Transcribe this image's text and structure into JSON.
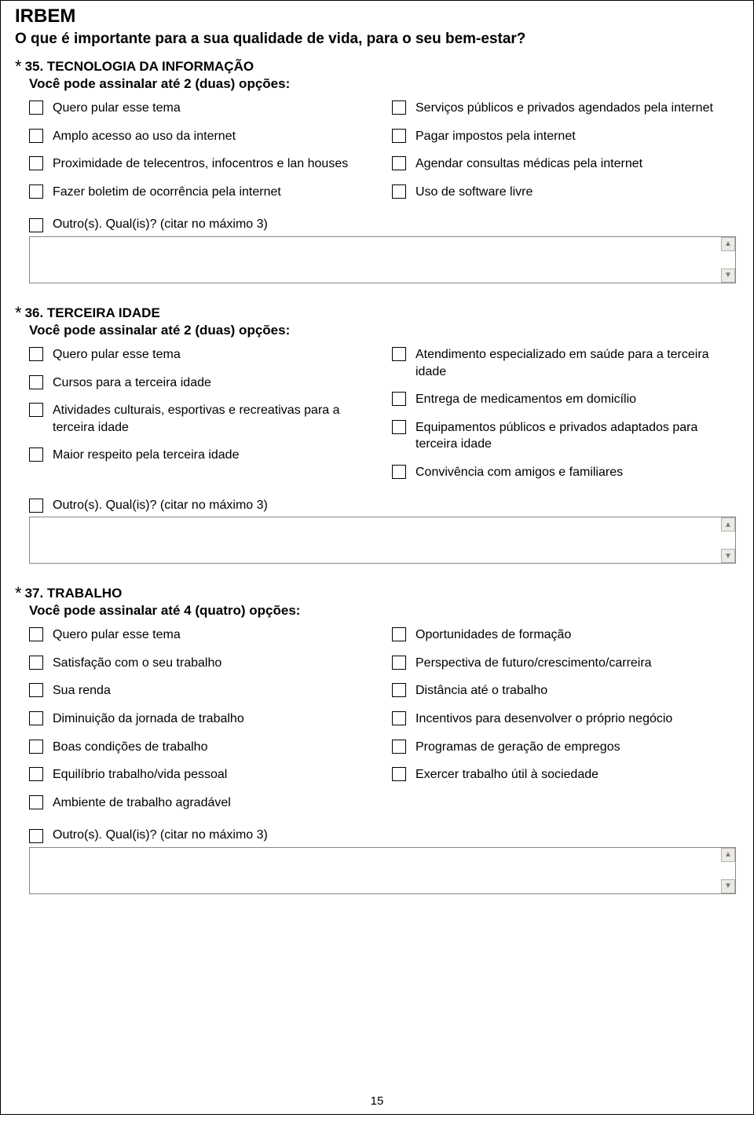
{
  "page": {
    "title": "IRBEM",
    "subtitle": "O que é importante para a sua qualidade de vida, para o seu bem-estar?",
    "page_number": "15"
  },
  "asterisk": "*",
  "scroll_up_glyph": "▲",
  "scroll_down_glyph": "▼",
  "q35": {
    "number_title": "35. TECNOLOGIA DA INFORMAÇÃO",
    "instruction": "Você pode assinalar até 2 (duas) opções:",
    "left": [
      "Quero pular esse tema",
      "Amplo acesso ao uso da internet",
      "Proximidade de telecentros, infocentros e lan houses",
      "Fazer boletim de ocorrência pela internet"
    ],
    "right": [
      "Serviços públicos e privados agendados pela internet",
      "Pagar impostos pela internet",
      "Agendar consultas médicas pela internet",
      "Uso de software livre"
    ],
    "other_label": "Outro(s). Qual(is)? (citar no máximo 3)"
  },
  "q36": {
    "number_title": "36. TERCEIRA IDADE",
    "instruction": "Você pode assinalar até 2 (duas) opções:",
    "left": [
      "Quero pular esse tema",
      "Cursos para a terceira idade",
      "Atividades culturais, esportivas e recreativas para a terceira idade",
      "Maior respeito pela terceira idade"
    ],
    "right": [
      "Atendimento especializado em saúde para a terceira idade",
      "Entrega de medicamentos em domicílio",
      "Equipamentos públicos e privados adaptados para terceira idade",
      "Convivência com amigos e familiares"
    ],
    "other_label": "Outro(s). Qual(is)? (citar no máximo 3)"
  },
  "q37": {
    "number_title": "37. TRABALHO",
    "instruction": "Você pode assinalar até 4 (quatro) opções:",
    "left": [
      "Quero pular esse tema",
      "Satisfação com o seu trabalho",
      "Sua renda",
      "Diminuição da jornada de trabalho",
      "Boas condições de trabalho",
      "Equilíbrio trabalho/vida pessoal",
      "Ambiente de trabalho agradável"
    ],
    "right": [
      "Oportunidades de formação",
      "Perspectiva de futuro/crescimento/carreira",
      "Distância até o trabalho",
      "Incentivos para desenvolver o próprio negócio",
      "Programas de geração de empregos",
      "Exercer trabalho útil à sociedade"
    ],
    "other_label": "Outro(s). Qual(is)? (citar no máximo 3)"
  }
}
